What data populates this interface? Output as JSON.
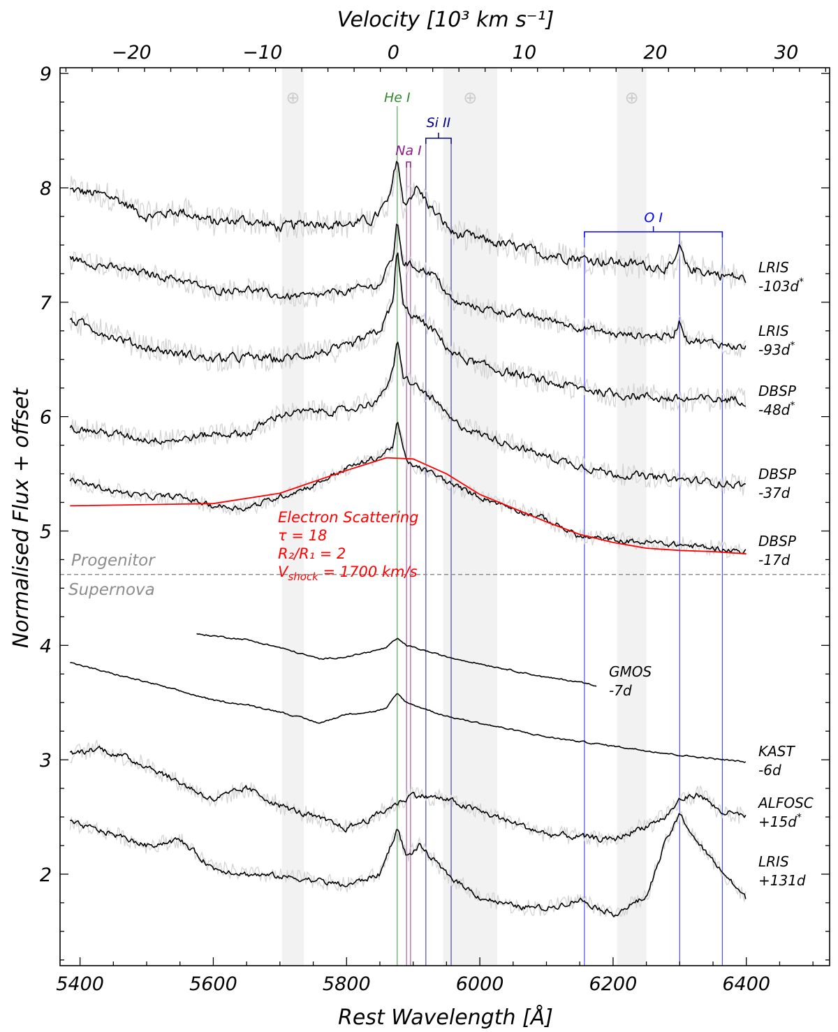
{
  "chart_data": {
    "type": "line",
    "xlabel": "Rest Wavelength [Å]",
    "top_xlabel": "Velocity [10³ km s⁻¹]",
    "ylabel": "Normalised Flux + offset",
    "xlim": [
      5370,
      6525
    ],
    "ylim": [
      1.2,
      9.05
    ],
    "top_xlim": [
      -25.45,
      33.3
    ],
    "x_ticks": [
      "5400",
      "5600",
      "5800",
      "6000",
      "6200",
      "6400"
    ],
    "top_ticks": [
      "−20",
      "−10",
      "0",
      "10",
      "20",
      "30"
    ],
    "y_ticks": [
      "2",
      "3",
      "4",
      "5",
      "6",
      "7",
      "8",
      "9"
    ],
    "grid": false,
    "telluric_bands": [
      {
        "range": [
          5703,
          5736
        ],
        "symbol": "⊕"
      },
      {
        "range": [
          5945,
          6026
        ],
        "symbol": "⊕"
      },
      {
        "range": [
          6206,
          6250
        ],
        "symbol": "⊕"
      }
    ],
    "lines": {
      "he": {
        "label": "He I",
        "wavelength": 5876,
        "color": "#2e8b2e"
      },
      "na": {
        "label": "Na I",
        "wavelengths": [
          5890,
          5896
        ],
        "color": "#8b1a8b"
      },
      "si": {
        "label": "Si II",
        "wavelengths": [
          5919,
          5957
        ],
        "color": "#00008b"
      },
      "o": {
        "label": "O I",
        "wavelengths": [
          6157,
          6300,
          6364
        ],
        "color": "#0000ff"
      }
    },
    "divider": {
      "y": 4.62,
      "upper_label": "Progenitor",
      "lower_label": "Supernova"
    },
    "model": {
      "title": "Electron Scattering",
      "tau": "τ = 18",
      "ratio": "R₂/R₁ = 2",
      "vshock": "= 1700 km/s",
      "color": "#ff0000",
      "points": [
        [
          5385,
          5.22
        ],
        [
          5600,
          5.24
        ],
        [
          5700,
          5.33
        ],
        [
          5800,
          5.53
        ],
        [
          5860,
          5.64
        ],
        [
          5900,
          5.63
        ],
        [
          5950,
          5.5
        ],
        [
          6000,
          5.32
        ],
        [
          6050,
          5.2
        ],
        [
          6100,
          5.08
        ],
        [
          6150,
          4.97
        ],
        [
          6200,
          4.9
        ],
        [
          6250,
          4.85
        ],
        [
          6300,
          4.83
        ],
        [
          6350,
          4.82
        ],
        [
          6400,
          4.8
        ]
      ]
    },
    "series": [
      {
        "label1": "LRIS",
        "label2": "-103d",
        "star": true,
        "points": [
          [
            5385,
            7.98
          ],
          [
            5450,
            7.92
          ],
          [
            5500,
            7.75
          ],
          [
            5550,
            7.8
          ],
          [
            5600,
            7.7
          ],
          [
            5650,
            7.72
          ],
          [
            5700,
            7.65
          ],
          [
            5750,
            7.7
          ],
          [
            5800,
            7.68
          ],
          [
            5840,
            7.72
          ],
          [
            5865,
            7.9
          ],
          [
            5876,
            8.28
          ],
          [
            5885,
            7.85
          ],
          [
            5905,
            8.0
          ],
          [
            5930,
            7.8
          ],
          [
            5960,
            7.6
          ],
          [
            6000,
            7.55
          ],
          [
            6100,
            7.42
          ],
          [
            6200,
            7.35
          ],
          [
            6290,
            7.3
          ],
          [
            6300,
            7.48
          ],
          [
            6310,
            7.3
          ],
          [
            6400,
            7.2
          ]
        ]
      },
      {
        "label1": "LRIS",
        "label2": "-93d",
        "star": true,
        "points": [
          [
            5385,
            7.38
          ],
          [
            5450,
            7.3
          ],
          [
            5500,
            7.25
          ],
          [
            5550,
            7.2
          ],
          [
            5600,
            7.1
          ],
          [
            5650,
            7.12
          ],
          [
            5700,
            7.05
          ],
          [
            5750,
            7.05
          ],
          [
            5800,
            7.1
          ],
          [
            5850,
            7.15
          ],
          [
            5870,
            7.4
          ],
          [
            5876,
            7.7
          ],
          [
            5885,
            7.35
          ],
          [
            5930,
            7.25
          ],
          [
            5960,
            7.0
          ],
          [
            6000,
            6.95
          ],
          [
            6100,
            6.85
          ],
          [
            6200,
            6.72
          ],
          [
            6290,
            6.7
          ],
          [
            6300,
            6.85
          ],
          [
            6310,
            6.68
          ],
          [
            6400,
            6.6
          ]
        ]
      },
      {
        "label1": "DBSP",
        "label2": "-48d",
        "star": true,
        "points": [
          [
            5385,
            6.85
          ],
          [
            5450,
            6.7
          ],
          [
            5500,
            6.6
          ],
          [
            5550,
            6.55
          ],
          [
            5600,
            6.5
          ],
          [
            5650,
            6.52
          ],
          [
            5700,
            6.5
          ],
          [
            5750,
            6.55
          ],
          [
            5800,
            6.6
          ],
          [
            5850,
            6.75
          ],
          [
            5870,
            7.0
          ],
          [
            5876,
            7.5
          ],
          [
            5885,
            6.95
          ],
          [
            5930,
            6.75
          ],
          [
            5960,
            6.55
          ],
          [
            6000,
            6.45
          ],
          [
            6100,
            6.3
          ],
          [
            6200,
            6.2
          ],
          [
            6300,
            6.15
          ],
          [
            6400,
            6.15
          ]
        ]
      },
      {
        "label1": "DBSP",
        "label2": "-37d",
        "star": false,
        "points": [
          [
            5385,
            5.9
          ],
          [
            5450,
            5.85
          ],
          [
            5500,
            5.8
          ],
          [
            5550,
            5.8
          ],
          [
            5600,
            5.85
          ],
          [
            5650,
            5.85
          ],
          [
            5700,
            6.02
          ],
          [
            5760,
            6.05
          ],
          [
            5800,
            6.05
          ],
          [
            5850,
            6.15
          ],
          [
            5870,
            6.4
          ],
          [
            5876,
            6.65
          ],
          [
            5885,
            6.35
          ],
          [
            5930,
            6.15
          ],
          [
            5960,
            5.95
          ],
          [
            6000,
            5.85
          ],
          [
            6100,
            5.65
          ],
          [
            6200,
            5.5
          ],
          [
            6300,
            5.45
          ],
          [
            6400,
            5.4
          ]
        ]
      },
      {
        "label1": "DBSP",
        "label2": "-17d",
        "star": false,
        "points": [
          [
            5385,
            5.45
          ],
          [
            5450,
            5.35
          ],
          [
            5500,
            5.3
          ],
          [
            5550,
            5.3
          ],
          [
            5600,
            5.22
          ],
          [
            5650,
            5.2
          ],
          [
            5700,
            5.3
          ],
          [
            5750,
            5.4
          ],
          [
            5800,
            5.55
          ],
          [
            5850,
            5.65
          ],
          [
            5870,
            5.75
          ],
          [
            5876,
            5.95
          ],
          [
            5890,
            5.6
          ],
          [
            5930,
            5.5
          ],
          [
            5960,
            5.4
          ],
          [
            6000,
            5.3
          ],
          [
            6050,
            5.2
          ],
          [
            6100,
            5.1
          ],
          [
            6150,
            4.95
          ],
          [
            6200,
            4.92
          ],
          [
            6300,
            4.88
          ],
          [
            6400,
            4.82
          ]
        ]
      },
      {
        "label1": "GMOS",
        "label2": "-7d",
        "star": false,
        "points": [
          [
            5575,
            4.1
          ],
          [
            5650,
            4.05
          ],
          [
            5700,
            3.98
          ],
          [
            5760,
            3.88
          ],
          [
            5800,
            3.9
          ],
          [
            5840,
            3.95
          ],
          [
            5860,
            3.98
          ],
          [
            5876,
            4.06
          ],
          [
            5890,
            4.0
          ],
          [
            5950,
            3.9
          ],
          [
            6050,
            3.78
          ],
          [
            6100,
            3.72
          ],
          [
            6150,
            3.68
          ],
          [
            6175,
            3.65
          ]
        ]
      },
      {
        "label1": "KAST",
        "label2": "-6d",
        "star": false,
        "points": [
          [
            5385,
            3.85
          ],
          [
            5450,
            3.75
          ],
          [
            5500,
            3.68
          ],
          [
            5550,
            3.6
          ],
          [
            5600,
            3.52
          ],
          [
            5650,
            3.48
          ],
          [
            5700,
            3.42
          ],
          [
            5760,
            3.32
          ],
          [
            5800,
            3.4
          ],
          [
            5840,
            3.42
          ],
          [
            5860,
            3.45
          ],
          [
            5876,
            3.58
          ],
          [
            5890,
            3.5
          ],
          [
            5950,
            3.38
          ],
          [
            6000,
            3.32
          ],
          [
            6100,
            3.2
          ],
          [
            6200,
            3.12
          ],
          [
            6300,
            3.04
          ],
          [
            6400,
            2.98
          ]
        ]
      },
      {
        "label1": "ALFOSC",
        "label2": "+15d",
        "star": true,
        "points": [
          [
            5385,
            3.05
          ],
          [
            5430,
            3.1
          ],
          [
            5500,
            2.95
          ],
          [
            5550,
            2.8
          ],
          [
            5600,
            2.65
          ],
          [
            5650,
            2.75
          ],
          [
            5700,
            2.6
          ],
          [
            5750,
            2.5
          ],
          [
            5800,
            2.4
          ],
          [
            5840,
            2.5
          ],
          [
            5870,
            2.6
          ],
          [
            5900,
            2.7
          ],
          [
            5950,
            2.65
          ],
          [
            6000,
            2.55
          ],
          [
            6100,
            2.35
          ],
          [
            6200,
            2.3
          ],
          [
            6280,
            2.5
          ],
          [
            6300,
            2.65
          ],
          [
            6330,
            2.7
          ],
          [
            6360,
            2.55
          ],
          [
            6400,
            2.5
          ]
        ]
      },
      {
        "label1": "LRIS",
        "label2": "+131d",
        "star": false,
        "points": [
          [
            5385,
            2.45
          ],
          [
            5450,
            2.35
          ],
          [
            5500,
            2.25
          ],
          [
            5550,
            2.3
          ],
          [
            5600,
            2.05
          ],
          [
            5650,
            2.0
          ],
          [
            5700,
            1.98
          ],
          [
            5750,
            1.95
          ],
          [
            5800,
            1.9
          ],
          [
            5850,
            2.0
          ],
          [
            5876,
            2.4
          ],
          [
            5890,
            2.15
          ],
          [
            5910,
            2.25
          ],
          [
            5950,
            2.0
          ],
          [
            6000,
            1.8
          ],
          [
            6050,
            1.72
          ],
          [
            6100,
            1.7
          ],
          [
            6150,
            1.78
          ],
          [
            6200,
            1.65
          ],
          [
            6250,
            1.8
          ],
          [
            6280,
            2.3
          ],
          [
            6300,
            2.52
          ],
          [
            6330,
            2.25
          ],
          [
            6360,
            2.05
          ],
          [
            6400,
            1.78
          ]
        ]
      }
    ]
  }
}
